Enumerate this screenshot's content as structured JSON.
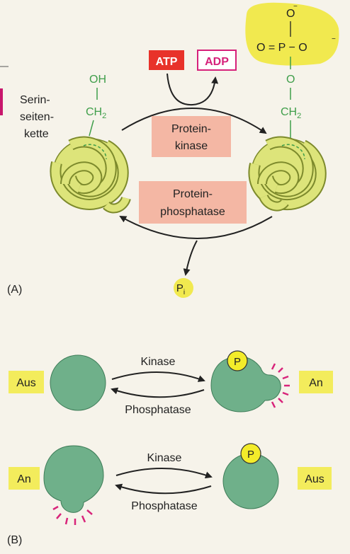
{
  "panel_a": {
    "panel_label": "(A)",
    "side_chain_label": [
      "Serin-",
      "seiten-",
      "kette"
    ],
    "oh_label": "OH",
    "ch2_label_left": "CH",
    "ch2_sub": "2",
    "atp_label": "ATP",
    "adp_label": "ADP",
    "kinase_label": [
      "Protein-",
      "kinase"
    ],
    "phosphatase_label": [
      "Protein-",
      "phosphatase"
    ],
    "phosphate_top": "O",
    "phosphate_row": "O = P − O",
    "phosphate_charge": "−",
    "phosphate_o_link": "O",
    "ch2_label_right": "CH",
    "pi_label": "P",
    "pi_sub": "i"
  },
  "panel_b": {
    "panel_label": "(B)",
    "row1": {
      "left_state": "Aus",
      "right_state": "An",
      "top_arrow": "Kinase",
      "bottom_arrow": "Phosphatase",
      "p_label": "P"
    },
    "row2": {
      "left_state": "An",
      "right_state": "Aus",
      "top_arrow": "Kinase",
      "bottom_arrow": "Phosphatase",
      "p_label": "P"
    }
  },
  "colors": {
    "protein_yellow": "#dde47a",
    "protein_outline": "#7d8a2c",
    "enzyme_box": "#f4b7a4",
    "atp_red": "#e8322a",
    "adp_magenta": "#d6207a",
    "state_yellow": "#f3ec5c",
    "blob_green": "#6fb08a",
    "phosphate_yellow": "#f1e94f",
    "green_text": "#3f9e4a",
    "active_rays": "#d8247a"
  }
}
